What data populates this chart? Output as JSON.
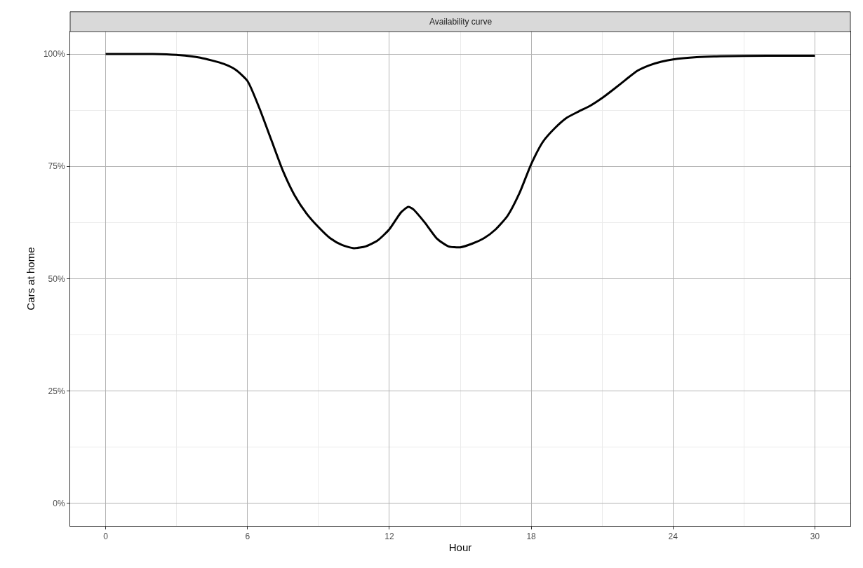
{
  "chart_data": {
    "type": "line",
    "title": "Availability curve",
    "xlabel": "Hour",
    "ylabel": "Cars at home",
    "x": [
      0,
      2,
      3,
      4,
      5,
      5.5,
      6,
      6.5,
      7,
      7.5,
      8,
      8.5,
      9,
      9.5,
      10,
      10.5,
      11,
      11.5,
      12,
      12.5,
      12.8,
      13,
      13.5,
      14,
      14.5,
      15,
      15.5,
      16,
      16.5,
      17,
      17.5,
      18,
      18.5,
      19,
      19.5,
      20,
      20.5,
      21,
      21.5,
      22,
      22.5,
      23,
      23.5,
      24,
      25,
      26,
      28,
      30
    ],
    "series": [
      {
        "color": "#000000",
        "values": [
          100,
          100,
          99.8,
          99.2,
          97.8,
          96.5,
          94,
          88,
          81,
          74,
          68.5,
          64.5,
          61.5,
          59,
          57.5,
          56.8,
          57.2,
          58.5,
          61,
          64.8,
          66,
          65.5,
          62.5,
          59,
          57.2,
          57,
          57.8,
          59,
          61,
          64,
          69,
          75.5,
          80.5,
          83.5,
          85.8,
          87.2,
          88.5,
          90.2,
          92.2,
          94.3,
          96.3,
          97.5,
          98.3,
          98.8,
          99.3,
          99.5,
          99.6,
          99.6
        ]
      }
    ],
    "xlim": [
      -1.5,
      31.5
    ],
    "xticks": [
      0,
      6,
      12,
      18,
      24,
      30
    ],
    "ylim": [
      -5,
      105
    ],
    "yticks": [
      {
        "value": 0,
        "label": "0%"
      },
      {
        "value": 25,
        "label": "25%"
      },
      {
        "value": 50,
        "label": "50%"
      },
      {
        "value": 75,
        "label": "75%"
      },
      {
        "value": 100,
        "label": "100%"
      }
    ],
    "grid": true,
    "line_style": "solid",
    "marker": "none"
  }
}
